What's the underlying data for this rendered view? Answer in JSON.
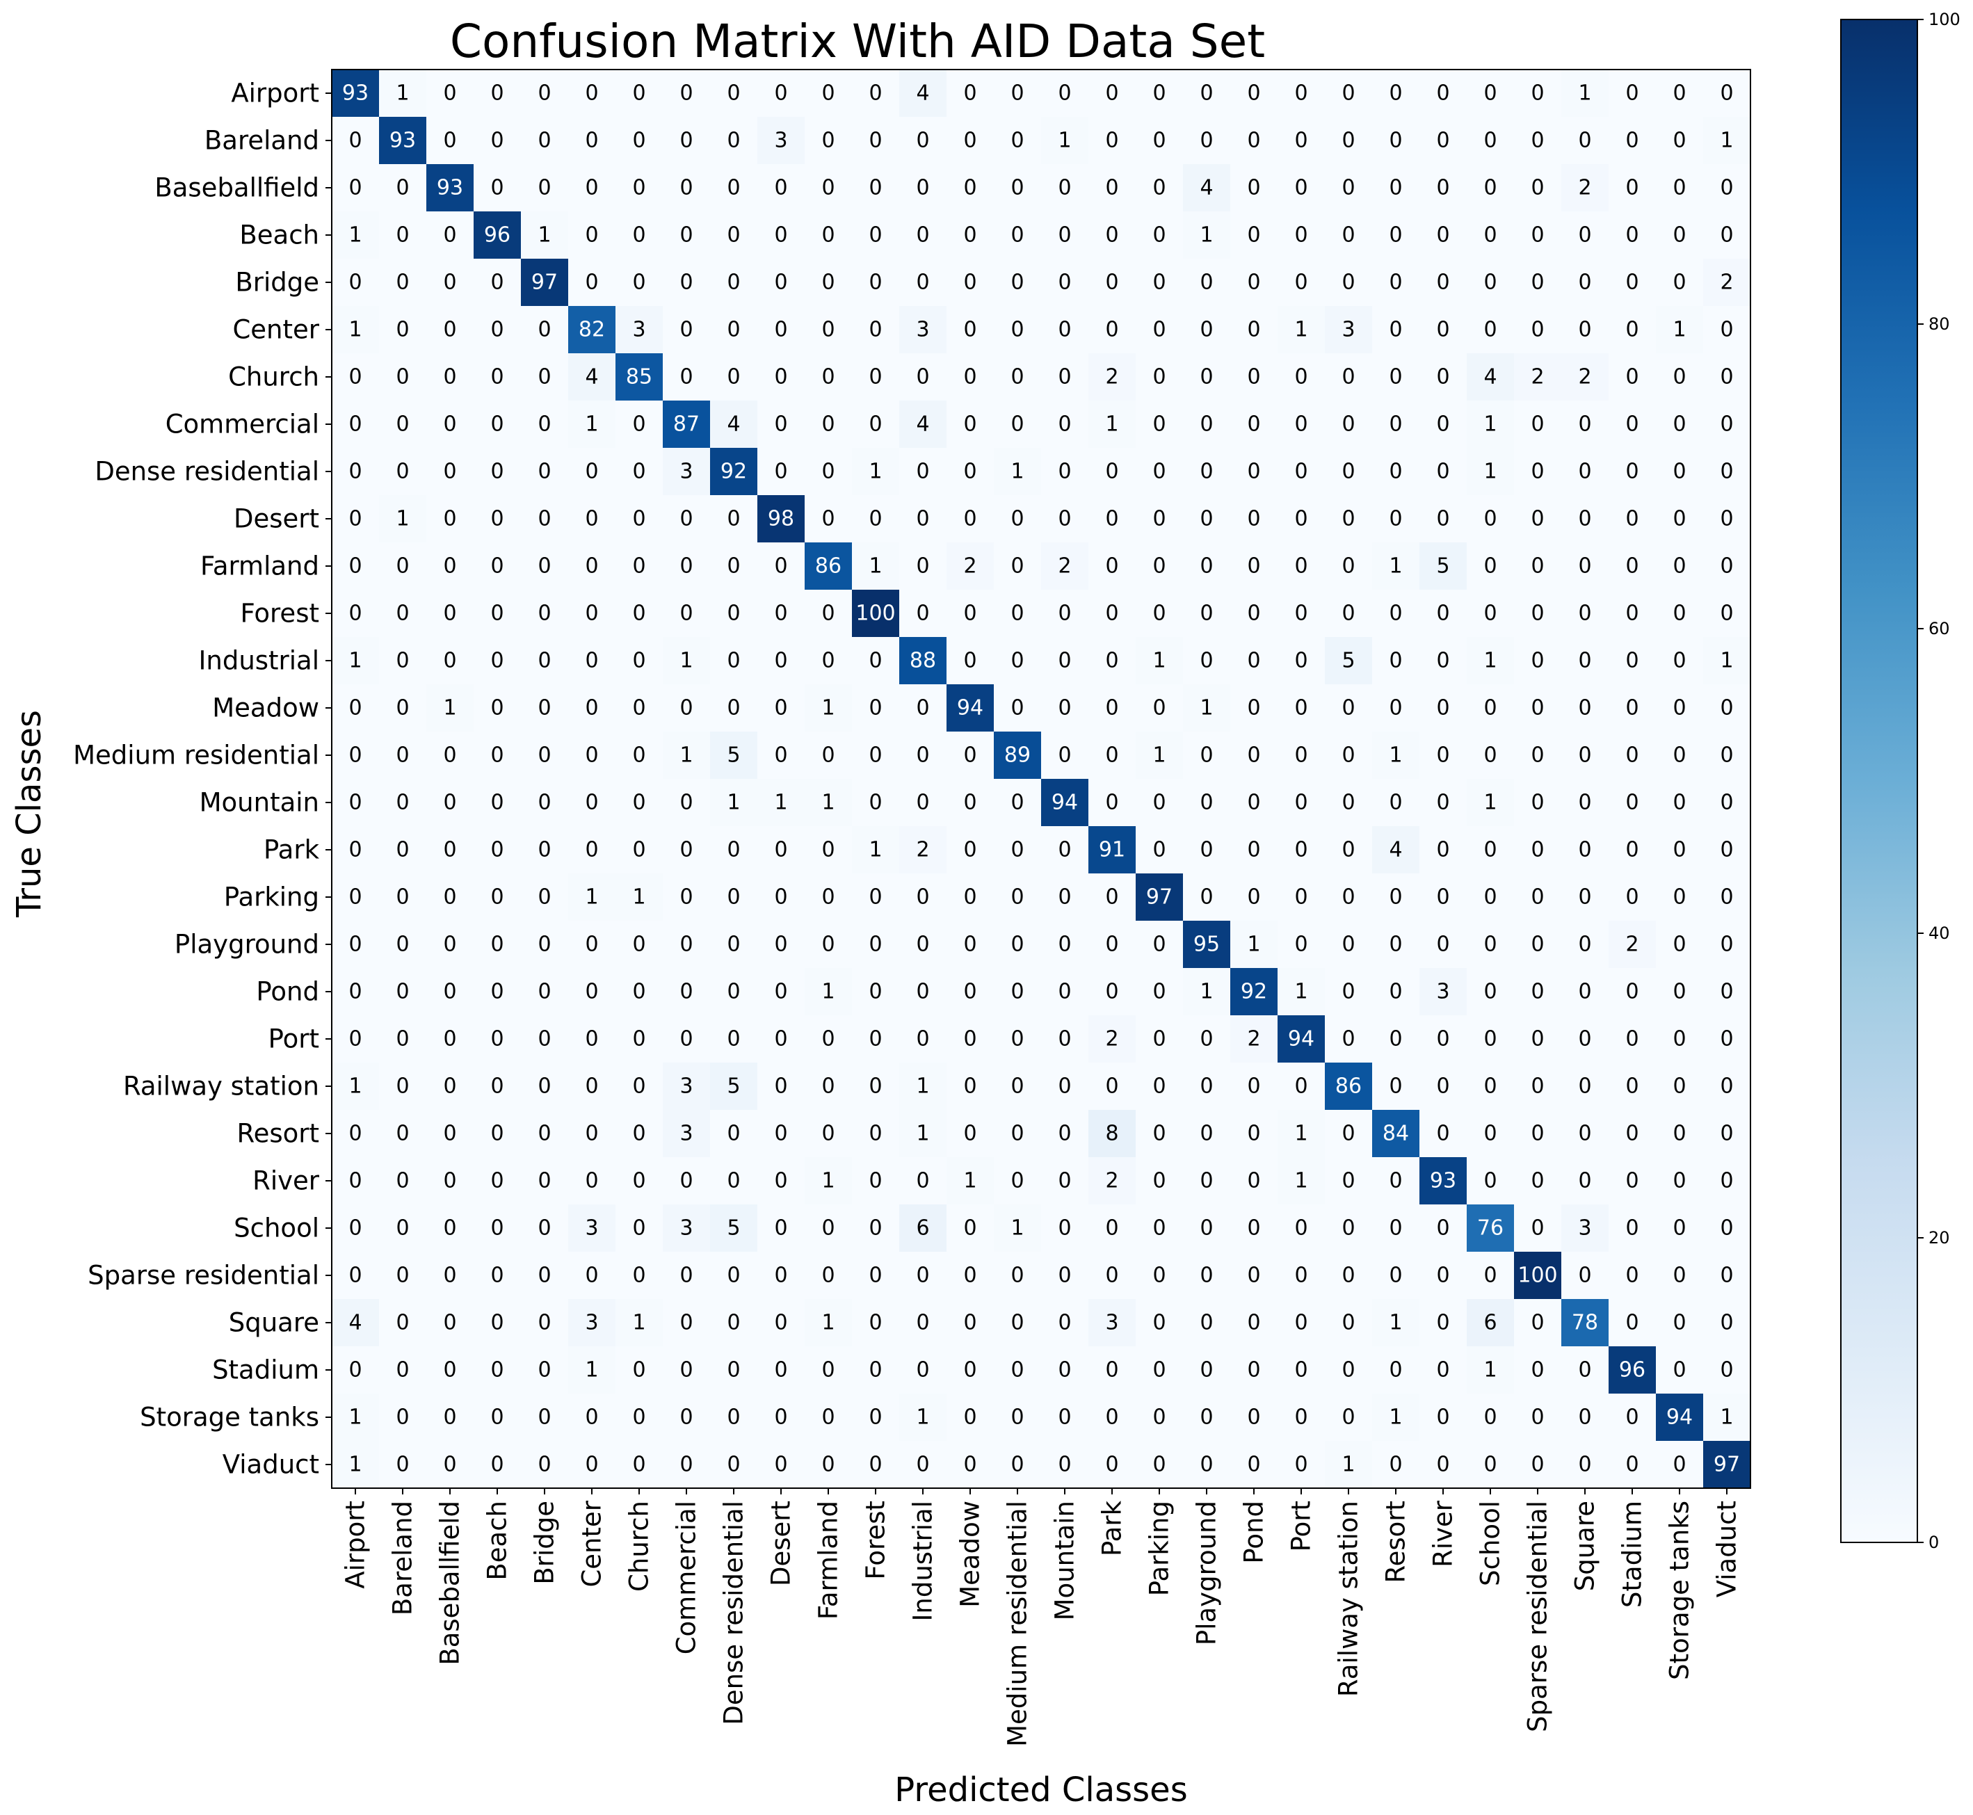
{
  "chart_data": {
    "type": "heatmap",
    "title": "Confusion Matrix With AID Data Set",
    "xlabel": "Predicted Classes",
    "ylabel": "True Classes",
    "classes": [
      "Airport",
      "Bareland",
      "Baseballfield",
      "Beach",
      "Bridge",
      "Center",
      "Church",
      "Commercial",
      "Dense residential",
      "Desert",
      "Farmland",
      "Forest",
      "Industrial",
      "Meadow",
      "Medium residential",
      "Mountain",
      "Park",
      "Parking",
      "Playground",
      "Pond",
      "Port",
      "Railway station",
      "Resort",
      "River",
      "School",
      "Sparse residential",
      "Square",
      "Stadium",
      "Storage tanks",
      "Viaduct"
    ],
    "matrix": [
      [
        93,
        1,
        0,
        0,
        0,
        0,
        0,
        0,
        0,
        0,
        0,
        0,
        4,
        0,
        0,
        0,
        0,
        0,
        0,
        0,
        0,
        0,
        0,
        0,
        0,
        0,
        1,
        0,
        0,
        0
      ],
      [
        0,
        93,
        0,
        0,
        0,
        0,
        0,
        0,
        0,
        3,
        0,
        0,
        0,
        0,
        0,
        1,
        0,
        0,
        0,
        0,
        0,
        0,
        0,
        0,
        0,
        0,
        0,
        0,
        0,
        1
      ],
      [
        0,
        0,
        93,
        0,
        0,
        0,
        0,
        0,
        0,
        0,
        0,
        0,
        0,
        0,
        0,
        0,
        0,
        0,
        4,
        0,
        0,
        0,
        0,
        0,
        0,
        0,
        2,
        0,
        0,
        0
      ],
      [
        1,
        0,
        0,
        96,
        1,
        0,
        0,
        0,
        0,
        0,
        0,
        0,
        0,
        0,
        0,
        0,
        0,
        0,
        1,
        0,
        0,
        0,
        0,
        0,
        0,
        0,
        0,
        0,
        0,
        0
      ],
      [
        0,
        0,
        0,
        0,
        97,
        0,
        0,
        0,
        0,
        0,
        0,
        0,
        0,
        0,
        0,
        0,
        0,
        0,
        0,
        0,
        0,
        0,
        0,
        0,
        0,
        0,
        0,
        0,
        0,
        2
      ],
      [
        1,
        0,
        0,
        0,
        0,
        82,
        3,
        0,
        0,
        0,
        0,
        0,
        3,
        0,
        0,
        0,
        0,
        0,
        0,
        0,
        1,
        3,
        0,
        0,
        0,
        0,
        0,
        0,
        1,
        0
      ],
      [
        0,
        0,
        0,
        0,
        0,
        4,
        85,
        0,
        0,
        0,
        0,
        0,
        0,
        0,
        0,
        0,
        2,
        0,
        0,
        0,
        0,
        0,
        0,
        0,
        4,
        2,
        2,
        0,
        0,
        0
      ],
      [
        0,
        0,
        0,
        0,
        0,
        1,
        0,
        87,
        4,
        0,
        0,
        0,
        4,
        0,
        0,
        0,
        1,
        0,
        0,
        0,
        0,
        0,
        0,
        0,
        1,
        0,
        0,
        0,
        0,
        0
      ],
      [
        0,
        0,
        0,
        0,
        0,
        0,
        0,
        3,
        92,
        0,
        0,
        1,
        0,
        0,
        1,
        0,
        0,
        0,
        0,
        0,
        0,
        0,
        0,
        0,
        1,
        0,
        0,
        0,
        0,
        0
      ],
      [
        0,
        1,
        0,
        0,
        0,
        0,
        0,
        0,
        0,
        98,
        0,
        0,
        0,
        0,
        0,
        0,
        0,
        0,
        0,
        0,
        0,
        0,
        0,
        0,
        0,
        0,
        0,
        0,
        0,
        0
      ],
      [
        0,
        0,
        0,
        0,
        0,
        0,
        0,
        0,
        0,
        0,
        86,
        1,
        0,
        2,
        0,
        2,
        0,
        0,
        0,
        0,
        0,
        0,
        1,
        5,
        0,
        0,
        0,
        0,
        0,
        0
      ],
      [
        0,
        0,
        0,
        0,
        0,
        0,
        0,
        0,
        0,
        0,
        0,
        100,
        0,
        0,
        0,
        0,
        0,
        0,
        0,
        0,
        0,
        0,
        0,
        0,
        0,
        0,
        0,
        0,
        0,
        0
      ],
      [
        1,
        0,
        0,
        0,
        0,
        0,
        0,
        1,
        0,
        0,
        0,
        0,
        88,
        0,
        0,
        0,
        0,
        1,
        0,
        0,
        0,
        5,
        0,
        0,
        1,
        0,
        0,
        0,
        0,
        1
      ],
      [
        0,
        0,
        1,
        0,
        0,
        0,
        0,
        0,
        0,
        0,
        1,
        0,
        0,
        94,
        0,
        0,
        0,
        0,
        1,
        0,
        0,
        0,
        0,
        0,
        0,
        0,
        0,
        0,
        0,
        0
      ],
      [
        0,
        0,
        0,
        0,
        0,
        0,
        0,
        1,
        5,
        0,
        0,
        0,
        0,
        0,
        89,
        0,
        0,
        1,
        0,
        0,
        0,
        0,
        1,
        0,
        0,
        0,
        0,
        0,
        0,
        0
      ],
      [
        0,
        0,
        0,
        0,
        0,
        0,
        0,
        0,
        1,
        1,
        1,
        0,
        0,
        0,
        0,
        94,
        0,
        0,
        0,
        0,
        0,
        0,
        0,
        0,
        1,
        0,
        0,
        0,
        0,
        0
      ],
      [
        0,
        0,
        0,
        0,
        0,
        0,
        0,
        0,
        0,
        0,
        0,
        1,
        2,
        0,
        0,
        0,
        91,
        0,
        0,
        0,
        0,
        0,
        4,
        0,
        0,
        0,
        0,
        0,
        0,
        0
      ],
      [
        0,
        0,
        0,
        0,
        0,
        1,
        1,
        0,
        0,
        0,
        0,
        0,
        0,
        0,
        0,
        0,
        0,
        97,
        0,
        0,
        0,
        0,
        0,
        0,
        0,
        0,
        0,
        0,
        0,
        0
      ],
      [
        0,
        0,
        0,
        0,
        0,
        0,
        0,
        0,
        0,
        0,
        0,
        0,
        0,
        0,
        0,
        0,
        0,
        0,
        95,
        1,
        0,
        0,
        0,
        0,
        0,
        0,
        0,
        2,
        0,
        0
      ],
      [
        0,
        0,
        0,
        0,
        0,
        0,
        0,
        0,
        0,
        0,
        1,
        0,
        0,
        0,
        0,
        0,
        0,
        0,
        1,
        92,
        1,
        0,
        0,
        3,
        0,
        0,
        0,
        0,
        0,
        0
      ],
      [
        0,
        0,
        0,
        0,
        0,
        0,
        0,
        0,
        0,
        0,
        0,
        0,
        0,
        0,
        0,
        0,
        2,
        0,
        0,
        2,
        94,
        0,
        0,
        0,
        0,
        0,
        0,
        0,
        0,
        0
      ],
      [
        1,
        0,
        0,
        0,
        0,
        0,
        0,
        3,
        5,
        0,
        0,
        0,
        1,
        0,
        0,
        0,
        0,
        0,
        0,
        0,
        0,
        86,
        0,
        0,
        0,
        0,
        0,
        0,
        0,
        0
      ],
      [
        0,
        0,
        0,
        0,
        0,
        0,
        0,
        3,
        0,
        0,
        0,
        0,
        1,
        0,
        0,
        0,
        8,
        0,
        0,
        0,
        1,
        0,
        84,
        0,
        0,
        0,
        0,
        0,
        0,
        0
      ],
      [
        0,
        0,
        0,
        0,
        0,
        0,
        0,
        0,
        0,
        0,
        1,
        0,
        0,
        1,
        0,
        0,
        2,
        0,
        0,
        0,
        1,
        0,
        0,
        93,
        0,
        0,
        0,
        0,
        0,
        0
      ],
      [
        0,
        0,
        0,
        0,
        0,
        3,
        0,
        3,
        5,
        0,
        0,
        0,
        6,
        0,
        1,
        0,
        0,
        0,
        0,
        0,
        0,
        0,
        0,
        0,
        76,
        0,
        3,
        0,
        0,
        0
      ],
      [
        0,
        0,
        0,
        0,
        0,
        0,
        0,
        0,
        0,
        0,
        0,
        0,
        0,
        0,
        0,
        0,
        0,
        0,
        0,
        0,
        0,
        0,
        0,
        0,
        0,
        100,
        0,
        0,
        0,
        0
      ],
      [
        4,
        0,
        0,
        0,
        0,
        3,
        1,
        0,
        0,
        0,
        1,
        0,
        0,
        0,
        0,
        0,
        3,
        0,
        0,
        0,
        0,
        0,
        1,
        0,
        6,
        0,
        78,
        0,
        0,
        0
      ],
      [
        0,
        0,
        0,
        0,
        0,
        1,
        0,
        0,
        0,
        0,
        0,
        0,
        0,
        0,
        0,
        0,
        0,
        0,
        0,
        0,
        0,
        0,
        0,
        0,
        1,
        0,
        0,
        96,
        0,
        0
      ],
      [
        1,
        0,
        0,
        0,
        0,
        0,
        0,
        0,
        0,
        0,
        0,
        0,
        1,
        0,
        0,
        0,
        0,
        0,
        0,
        0,
        0,
        0,
        1,
        0,
        0,
        0,
        0,
        0,
        94,
        1
      ],
      [
        1,
        0,
        0,
        0,
        0,
        0,
        0,
        0,
        0,
        0,
        0,
        0,
        0,
        0,
        0,
        0,
        0,
        0,
        0,
        0,
        0,
        1,
        0,
        0,
        0,
        0,
        0,
        0,
        0,
        97
      ]
    ],
    "colorbar": {
      "range": [
        0,
        100
      ],
      "ticks": [
        0,
        20,
        40,
        60,
        80,
        100
      ],
      "colormap": "Blues",
      "colors": [
        "#f7fbff",
        "#deebf7",
        "#c6dbef",
        "#9ecae1",
        "#6baed6",
        "#4292c6",
        "#2171b5",
        "#08519c",
        "#08306b"
      ]
    },
    "grid": false,
    "legend": "colorbar-right"
  }
}
